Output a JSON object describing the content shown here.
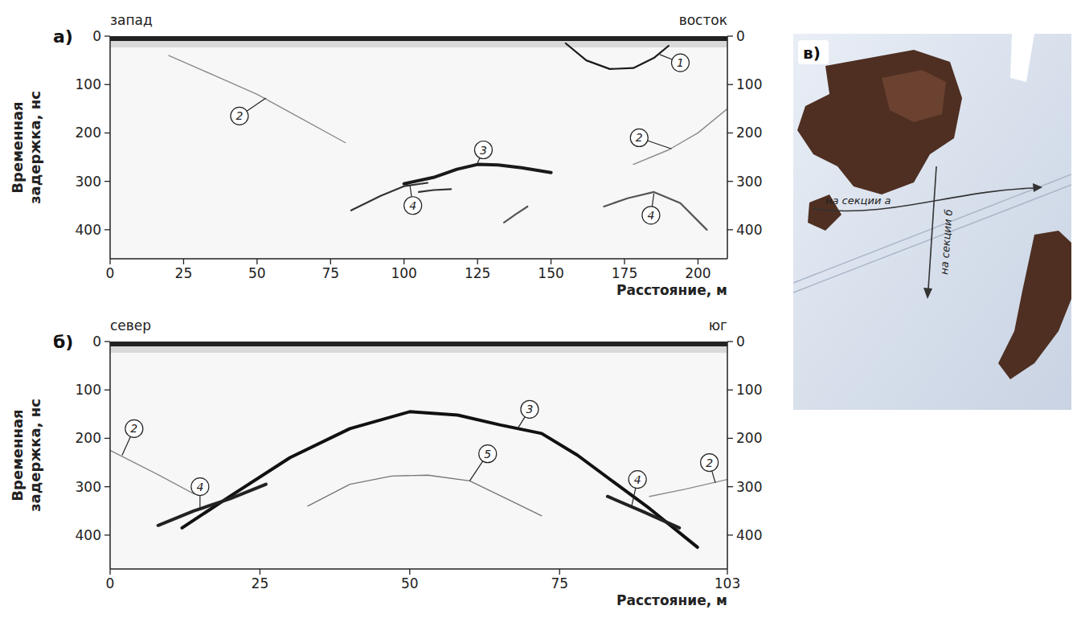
{
  "chart_data": [
    {
      "type": "radargram",
      "label": "а)",
      "direction_left": "запад",
      "direction_right": "восток",
      "xlabel": "Расстояние, м",
      "ylabel": "Временная задержка, нс",
      "xlim": [
        0,
        210
      ],
      "ylim": [
        0,
        460
      ],
      "xticks": [
        0,
        25,
        50,
        75,
        100,
        125,
        150,
        175,
        200
      ],
      "yticks": [
        0,
        100,
        200,
        300,
        400
      ],
      "series": [
        {
          "color": "#1a1a1a",
          "line_style": "solid",
          "x": [
            155,
            162,
            170,
            178,
            185,
            190
          ],
          "values": [
            15,
            50,
            68,
            66,
            45,
            20
          ]
        },
        {
          "color": "#8a8a8a",
          "line_style": "faint",
          "x": [
            20,
            35,
            50,
            65,
            80
          ],
          "values": [
            40,
            80,
            120,
            170,
            220
          ]
        },
        {
          "color": "#8a8a8a",
          "line_style": "faint",
          "x": [
            178,
            190,
            200,
            210
          ],
          "values": [
            265,
            235,
            200,
            150
          ]
        },
        {
          "color": "#1a1a1a",
          "line_style": "bold",
          "x": [
            100,
            110,
            118,
            125,
            132,
            140,
            150
          ],
          "values": [
            305,
            292,
            275,
            265,
            266,
            272,
            282
          ]
        },
        {
          "color": "#333333",
          "line_style": "solid",
          "x": [
            82,
            92,
            100,
            108
          ],
          "values": [
            360,
            330,
            310,
            303
          ]
        },
        {
          "color": "#333333",
          "line_style": "solid",
          "x": [
            105,
            110,
            116
          ],
          "values": [
            322,
            318,
            316
          ]
        },
        {
          "color": "#555555",
          "line_style": "solid",
          "x": [
            134,
            138,
            142
          ],
          "values": [
            385,
            368,
            352
          ]
        },
        {
          "color": "#555555",
          "line_style": "solid",
          "x": [
            168,
            176,
            185,
            194,
            203
          ],
          "values": [
            352,
            335,
            322,
            345,
            400
          ]
        }
      ],
      "annotations": [
        {
          "text": "1",
          "x": 194,
          "y": 55,
          "target_x": 187,
          "target_y": 38
        },
        {
          "text": "2",
          "x": 44,
          "y": 165,
          "target_x": 53,
          "target_y": 128
        },
        {
          "text": "2",
          "x": 180,
          "y": 210,
          "target_x": 191,
          "target_y": 233
        },
        {
          "text": "3",
          "x": 127,
          "y": 235,
          "target_x": 125,
          "target_y": 262
        },
        {
          "text": "4",
          "x": 103,
          "y": 350,
          "target_x": 102,
          "target_y": 308
        },
        {
          "text": "4",
          "x": 184,
          "y": 370,
          "target_x": 185,
          "target_y": 325
        }
      ]
    },
    {
      "type": "radargram",
      "label": "б)",
      "direction_left": "север",
      "direction_right": "юг",
      "xlabel": "Расстояние, м",
      "ylabel": "Временная задержка, нс",
      "xlim": [
        0,
        103
      ],
      "ylim": [
        0,
        470
      ],
      "xticks": [
        0,
        25,
        50,
        75,
        103
      ],
      "yticks": [
        0,
        100,
        200,
        300,
        400
      ],
      "series": [
        {
          "color": "#111111",
          "line_style": "bold",
          "x": [
            12,
            20,
            30,
            40,
            50,
            58,
            65,
            72,
            78,
            84,
            90,
            98
          ],
          "values": [
            385,
            320,
            240,
            180,
            145,
            152,
            172,
            190,
            235,
            290,
            345,
            425
          ]
        },
        {
          "color": "#222222",
          "line_style": "bold",
          "x": [
            8,
            14,
            20,
            26
          ],
          "values": [
            380,
            350,
            325,
            295
          ]
        },
        {
          "color": "#222222",
          "line_style": "bold",
          "x": [
            83,
            89,
            95
          ],
          "values": [
            320,
            352,
            385
          ]
        },
        {
          "color": "#777777",
          "line_style": "faint",
          "x": [
            33,
            40,
            47,
            53,
            60,
            67,
            72
          ],
          "values": [
            340,
            295,
            278,
            276,
            288,
            330,
            360
          ]
        },
        {
          "color": "#8a8a8a",
          "line_style": "faint",
          "x": [
            0,
            8,
            14
          ],
          "values": [
            225,
            275,
            315
          ]
        },
        {
          "color": "#8a8a8a",
          "line_style": "faint",
          "x": [
            90,
            96,
            103
          ],
          "values": [
            320,
            305,
            285
          ]
        }
      ],
      "annotations": [
        {
          "text": "2",
          "x": 4,
          "y": 180,
          "target_x": 2,
          "target_y": 235
        },
        {
          "text": "4",
          "x": 15,
          "y": 300,
          "target_x": 15,
          "target_y": 345
        },
        {
          "text": "3",
          "x": 70,
          "y": 140,
          "target_x": 68,
          "target_y": 180
        },
        {
          "text": "5",
          "x": 63,
          "y": 232,
          "target_x": 60,
          "target_y": 288
        },
        {
          "text": "4",
          "x": 88,
          "y": 285,
          "target_x": 87,
          "target_y": 342
        },
        {
          "text": "2",
          "x": 100,
          "y": 250,
          "target_x": 101,
          "target_y": 292
        }
      ]
    }
  ],
  "photo": {
    "label": "в)",
    "arrows": [
      "на секции а",
      "на секции б"
    ]
  }
}
